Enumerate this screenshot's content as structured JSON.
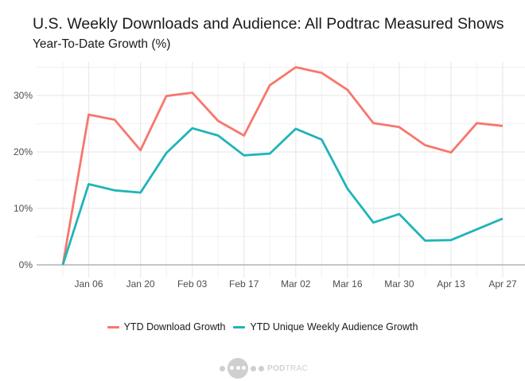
{
  "header": {
    "title": "U.S. Weekly Downloads and Audience: All Podtrac Measured Shows",
    "subtitle": "Year-To-Date Growth (%)"
  },
  "footer": {
    "logo_text_bold": "POD",
    "logo_text_light": "TRAC"
  },
  "chart_data": {
    "type": "line",
    "title": "U.S. Weekly Downloads and Audience: All Podtrac Measured Shows",
    "subtitle": "Year-To-Date Growth (%)",
    "xlabel": "",
    "ylabel": "",
    "x": [
      "Dec 30",
      "Jan 06",
      "Jan 13",
      "Jan 20",
      "Jan 27",
      "Feb 03",
      "Feb 10",
      "Feb 17",
      "Feb 24",
      "Mar 02",
      "Mar 09",
      "Mar 16",
      "Mar 23",
      "Mar 30",
      "Apr 06",
      "Apr 13",
      "Apr 20",
      "Apr 27"
    ],
    "x_tick_labels": [
      "Jan 06",
      "Jan 20",
      "Feb 03",
      "Feb 17",
      "Mar 02",
      "Mar 16",
      "Mar 30",
      "Apr 13",
      "Apr 27"
    ],
    "y_ticks": [
      0,
      10,
      20,
      30
    ],
    "y_tick_labels": [
      "0%",
      "10%",
      "20%",
      "30%"
    ],
    "ylim": [
      0,
      36.5
    ],
    "grid": true,
    "legend_position": "bottom",
    "series": [
      {
        "name": "YTD Download Growth",
        "color": "#F8766D",
        "values": [
          0,
          26.6,
          25.7,
          20.3,
          29.9,
          30.5,
          25.5,
          22.9,
          31.8,
          35.0,
          34.0,
          31.0,
          25.1,
          24.4,
          21.2,
          19.9,
          25.1,
          24.6
        ]
      },
      {
        "name": "YTD Unique Weekly Audience Growth",
        "color": "#1FB4B8",
        "values": [
          0,
          14.3,
          13.2,
          12.8,
          19.8,
          24.2,
          22.9,
          19.4,
          19.7,
          24.1,
          22.2,
          13.5,
          7.5,
          9.0,
          4.3,
          4.4,
          6.3,
          8.2
        ]
      }
    ]
  }
}
